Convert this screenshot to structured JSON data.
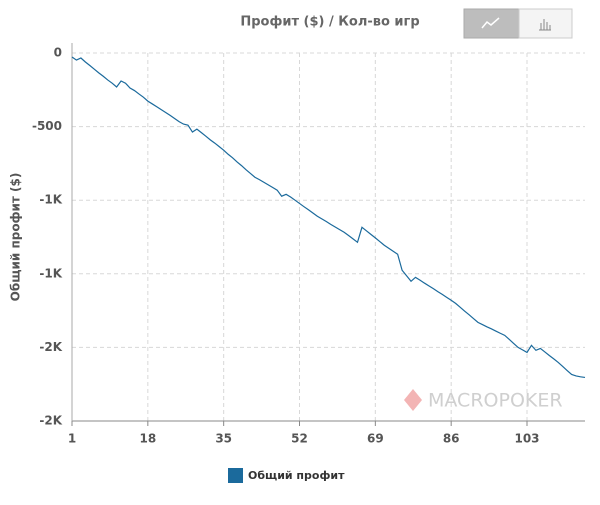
{
  "chart_data": {
    "type": "line",
    "title": "Профит ($) / Кол-во игр",
    "y_label": "Общий профит ($)",
    "watermark": "MACROPOKER",
    "x": [
      1,
      2,
      3,
      4,
      5,
      6,
      7,
      8,
      9,
      10,
      11,
      12,
      13,
      14,
      15,
      16,
      17,
      18,
      19,
      20,
      21,
      22,
      23,
      24,
      25,
      26,
      27,
      28,
      29,
      30,
      31,
      32,
      33,
      34,
      35,
      36,
      37,
      38,
      39,
      40,
      41,
      42,
      43,
      44,
      45,
      46,
      47,
      48,
      49,
      50,
      51,
      52,
      53,
      54,
      55,
      56,
      57,
      58,
      59,
      60,
      61,
      62,
      63,
      64,
      65,
      66,
      67,
      68,
      69,
      70,
      71,
      72,
      73,
      74,
      75,
      76,
      77,
      78,
      79,
      80,
      81,
      82,
      83,
      84,
      85,
      86,
      87,
      88,
      89,
      90,
      91,
      92,
      93,
      94,
      95,
      96,
      97,
      98,
      99,
      100,
      101,
      102,
      103,
      104,
      105,
      106,
      107,
      108,
      109,
      110,
      111,
      112,
      113,
      114,
      115,
      116
    ],
    "series": [
      {
        "name": "Общий профит",
        "color": "#1b6a9c",
        "values": [
          -27,
          -48,
          -34,
          -61,
          -85,
          -110,
          -135,
          -158,
          -183,
          -205,
          -231,
          -190,
          -205,
          -238,
          -255,
          -278,
          -300,
          -327,
          -346,
          -365,
          -385,
          -404,
          -424,
          -445,
          -466,
          -483,
          -490,
          -537,
          -517,
          -541,
          -565,
          -590,
          -612,
          -636,
          -660,
          -688,
          -712,
          -740,
          -765,
          -793,
          -818,
          -844,
          -860,
          -878,
          -896,
          -914,
          -932,
          -973,
          -960,
          -978,
          -1000,
          -1022,
          -1044,
          -1065,
          -1087,
          -1109,
          -1127,
          -1145,
          -1164,
          -1182,
          -1200,
          -1218,
          -1240,
          -1263,
          -1286,
          -1184,
          -1208,
          -1232,
          -1256,
          -1281,
          -1306,
          -1326,
          -1347,
          -1367,
          -1476,
          -1513,
          -1551,
          -1524,
          -1543,
          -1563,
          -1582,
          -1601,
          -1621,
          -1640,
          -1660,
          -1680,
          -1701,
          -1727,
          -1753,
          -1778,
          -1804,
          -1830,
          -1845,
          -1860,
          -1874,
          -1889,
          -1904,
          -1918,
          -1945,
          -1973,
          -2000,
          -2017,
          -2034,
          -1986,
          -2020,
          -2007,
          -2031,
          -2055,
          -2078,
          -2102,
          -2129,
          -2157,
          -2184,
          -2194,
          -2200,
          -2204
        ]
      }
    ],
    "xlim": [
      1,
      116
    ],
    "xticks": [
      1,
      18,
      35,
      52,
      69,
      86,
      103
    ],
    "ylim": [
      -2500,
      0
    ],
    "yticks": [
      0,
      -500,
      {
        "value": -1000,
        "label": "-1K"
      },
      {
        "value": -1500,
        "label": "-1K"
      },
      {
        "value": -2000,
        "label": "-2K"
      },
      {
        "value": -2500,
        "label": "-2K"
      }
    ],
    "grid": true
  }
}
